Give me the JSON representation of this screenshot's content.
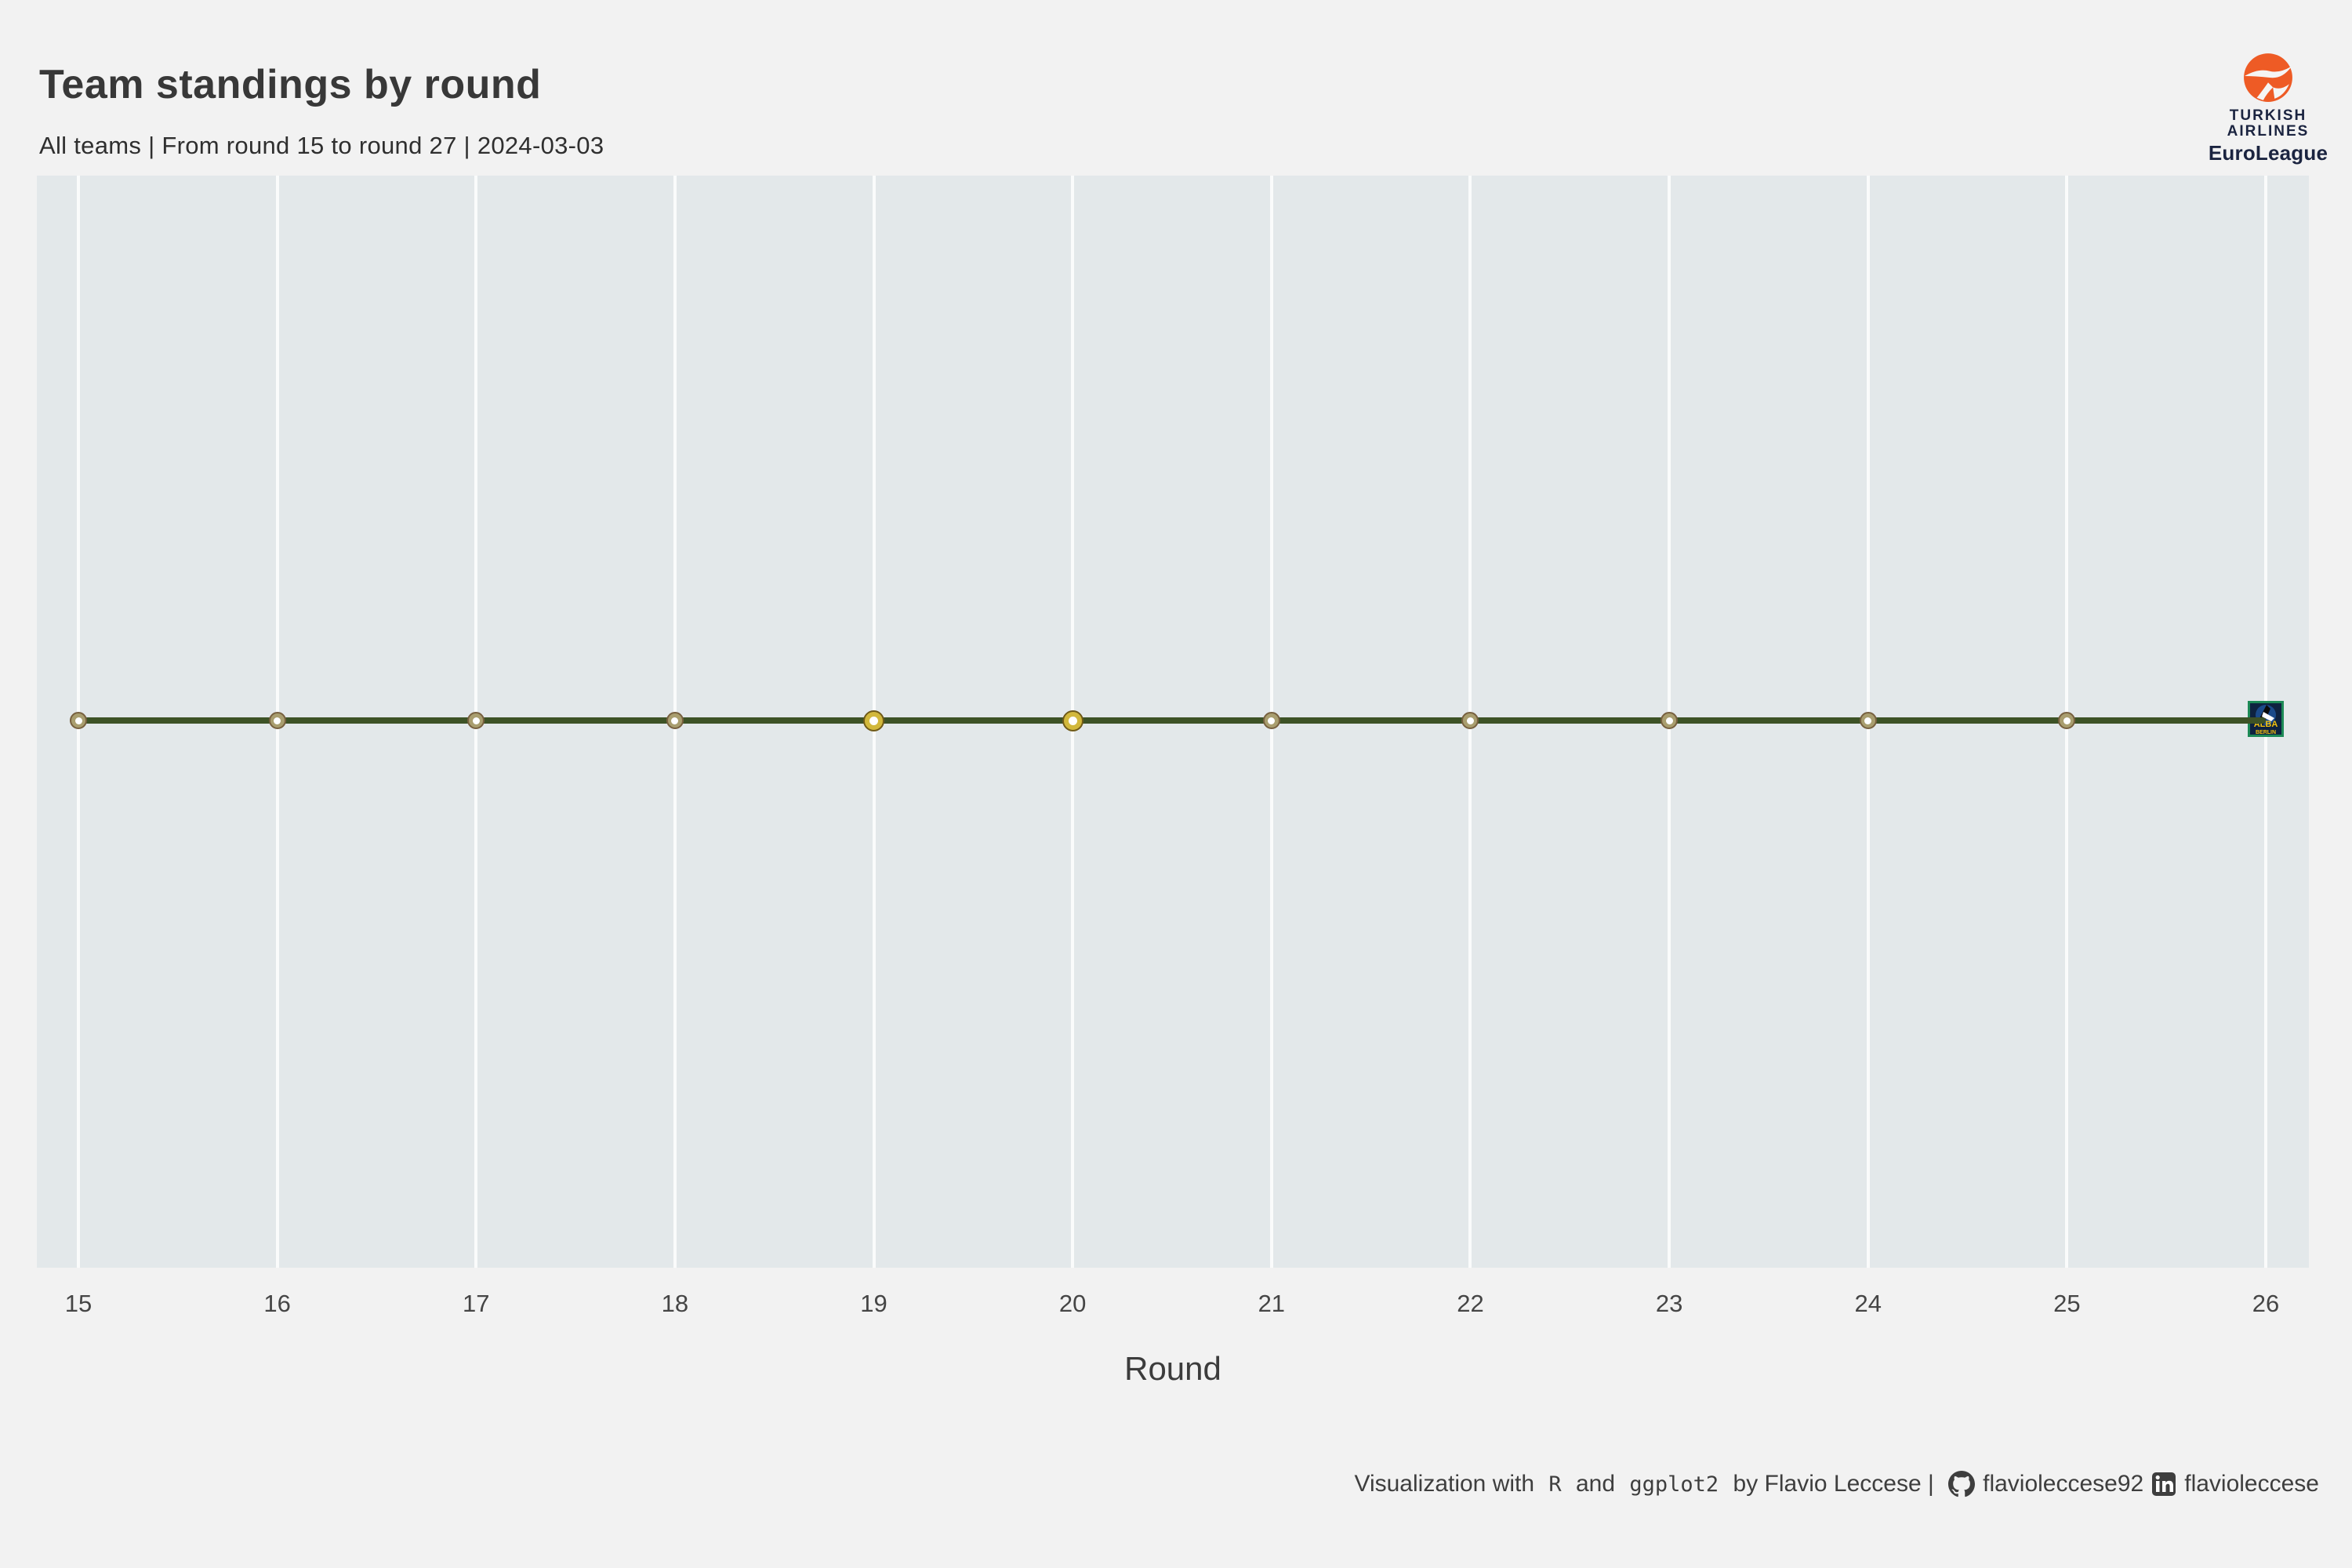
{
  "header": {
    "title": "Team standings by round",
    "subtitle": "All teams | From round 15 to round 27 | 2024-03-03"
  },
  "branding": {
    "airline_line1": "TURKISH",
    "airline_line2": "AIRLINES",
    "league": "EuroLeague",
    "orange": "#ee5b25",
    "navy": "#1b2440"
  },
  "team_crest": {
    "name_line1": "ALBA",
    "name_line2": "BERLIN",
    "navy": "#0e2240",
    "blue": "#1a4a8a",
    "yellow": "#f2c10e",
    "green": "#1d8a57"
  },
  "chart_data": {
    "type": "line",
    "title": "Team standings by round",
    "subtitle": "All teams | From round 15 to round 27 | 2024-03-03",
    "xlabel": "Round",
    "ylabel": "",
    "x": [
      15,
      16,
      17,
      18,
      19,
      20,
      21,
      22,
      23,
      24,
      25,
      26
    ],
    "series": [
      {
        "name": "ALBA Berlin",
        "values": [
          1,
          1,
          1,
          1,
          1,
          1,
          1,
          1,
          1,
          1,
          1,
          1
        ],
        "note": "flat horizontal line - constant standing across rounds 15-26; no y-axis scale shown; team crest marks the final point at round 26"
      }
    ],
    "highlighted_rounds": [
      19,
      20
    ],
    "x_gridlines": true,
    "y_gridlines": false,
    "legend": "none"
  },
  "chart_style": {
    "page_bg": "#f2f2f2",
    "plot_bg": "#e3e8ea",
    "grid": "#fafbfb",
    "line": "#3d5226",
    "marker_ring": "#a99e6f",
    "marker_edge": "#77603f",
    "marker_highlight_ring": "#d2b83c",
    "marker_highlight_edge": "#6f5a18",
    "marker_core": "#ffffff"
  },
  "footer": {
    "prefix": "Visualization with ",
    "code1": "R",
    "mid1": " and ",
    "code2": "ggplot2",
    "mid2": " by Flavio Leccese | ",
    "github_handle": "flavioleccese92",
    "linkedin_handle": "flavioleccese"
  }
}
